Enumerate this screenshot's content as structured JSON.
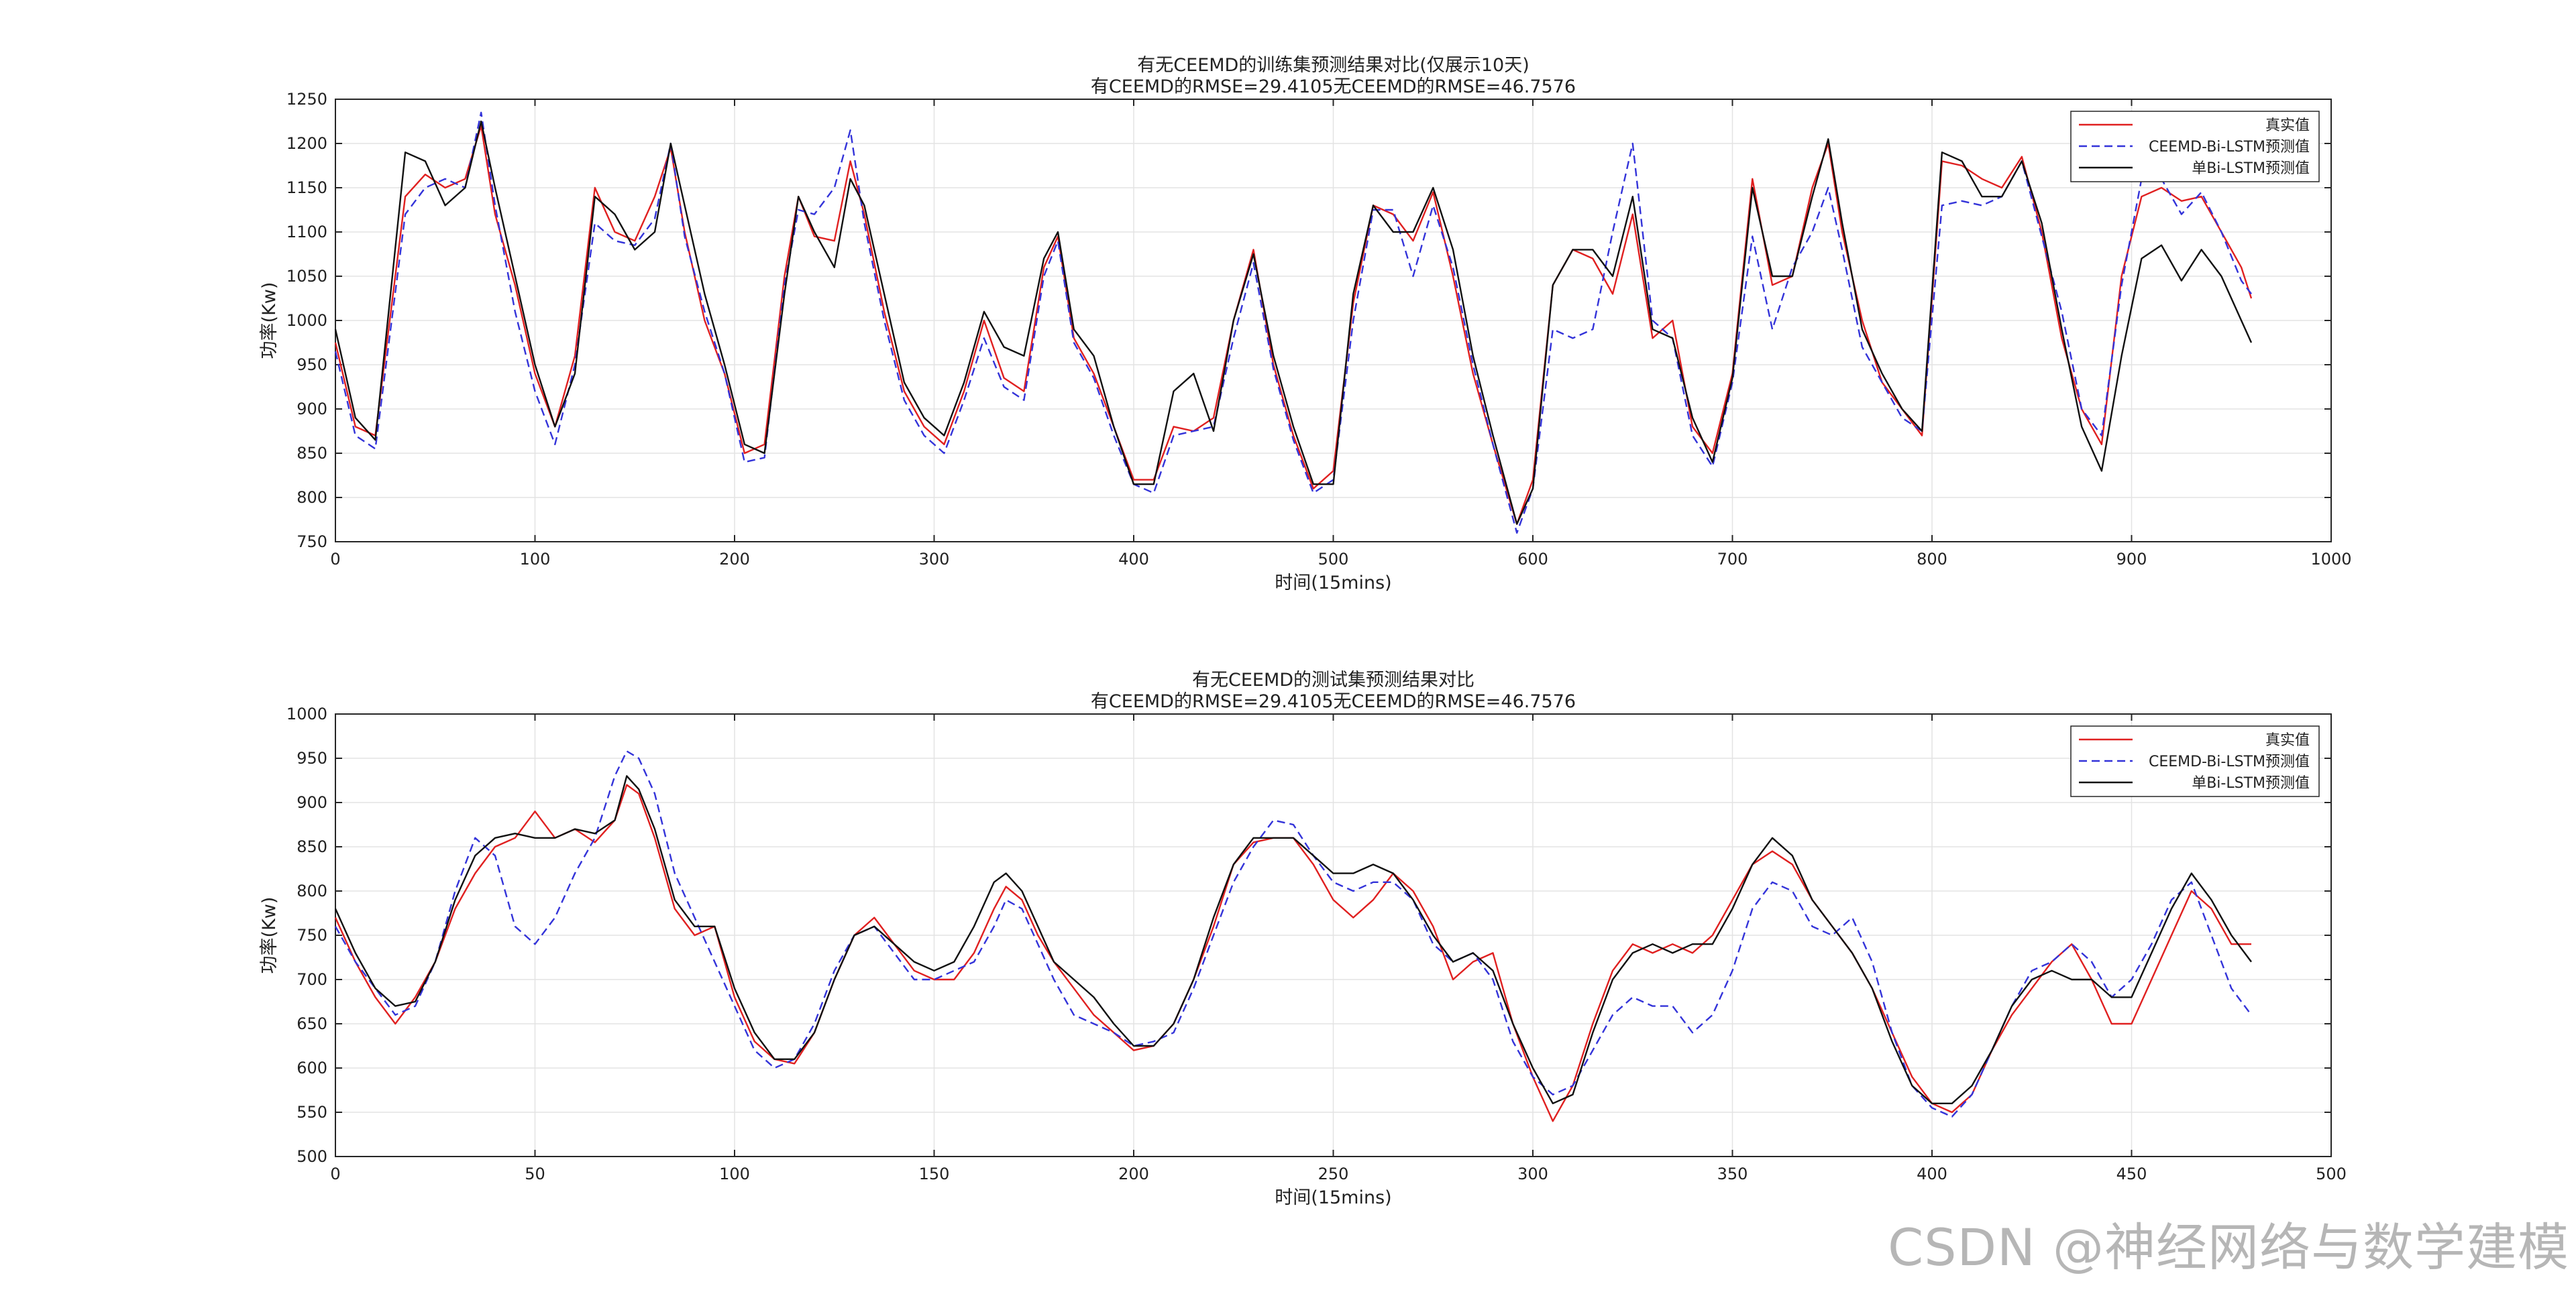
{
  "watermark": "CSDN @神经网络与数学建模",
  "chart_data": [
    {
      "type": "line",
      "title": "有无CEEMD的训练集预测结果对比(仅展示10天)",
      "subtitle": "有CEEMD的RMSE=29.4105无CEEMD的RMSE=46.7576",
      "xlabel": "时间(15mins)",
      "ylabel": "功率(Kw)",
      "xlim": [
        0,
        1000
      ],
      "ylim": [
        750,
        1250
      ],
      "xticks": [
        0,
        100,
        200,
        300,
        400,
        500,
        600,
        700,
        800,
        900,
        1000
      ],
      "yticks": [
        750,
        800,
        850,
        900,
        950,
        1000,
        1050,
        1100,
        1150,
        1200,
        1250
      ],
      "grid": true,
      "legend_position": "top-right",
      "x": [
        0,
        10,
        20,
        35,
        45,
        55,
        65,
        73,
        80,
        90,
        100,
        110,
        120,
        130,
        140,
        150,
        160,
        168,
        175,
        185,
        195,
        205,
        215,
        225,
        232,
        240,
        250,
        258,
        265,
        275,
        285,
        295,
        305,
        315,
        325,
        335,
        345,
        355,
        362,
        370,
        380,
        390,
        400,
        410,
        420,
        430,
        440,
        450,
        460,
        470,
        480,
        490,
        500,
        510,
        520,
        530,
        540,
        550,
        560,
        570,
        580,
        592,
        600,
        610,
        620,
        630,
        640,
        650,
        660,
        670,
        680,
        690,
        700,
        710,
        720,
        730,
        740,
        748,
        755,
        765,
        775,
        785,
        795,
        805,
        815,
        825,
        835,
        845,
        855,
        865,
        875,
        885,
        895,
        905,
        915,
        925,
        935,
        945,
        955,
        960
      ],
      "series": [
        {
          "name": "真实值",
          "color": "#e02020",
          "dash": "solid",
          "values": [
            975,
            880,
            870,
            1140,
            1165,
            1150,
            1160,
            1220,
            1120,
            1040,
            940,
            880,
            960,
            1150,
            1100,
            1090,
            1140,
            1195,
            1100,
            1000,
            940,
            850,
            860,
            1050,
            1140,
            1095,
            1090,
            1180,
            1120,
            1010,
            920,
            880,
            860,
            920,
            1000,
            935,
            920,
            1060,
            1095,
            980,
            940,
            880,
            820,
            820,
            880,
            875,
            890,
            1000,
            1080,
            950,
            870,
            810,
            830,
            1020,
            1130,
            1120,
            1090,
            1145,
            1050,
            940,
            860,
            770,
            820,
            1040,
            1080,
            1070,
            1030,
            1120,
            980,
            1000,
            880,
            850,
            940,
            1160,
            1040,
            1050,
            1150,
            1200,
            1100,
            1000,
            930,
            900,
            870,
            1180,
            1175,
            1160,
            1150,
            1185,
            1100,
            980,
            900,
            860,
            1050,
            1140,
            1150,
            1135,
            1140,
            1100,
            1060,
            1025
          ]
        },
        {
          "name": "CEEMD-Bi-LSTM预测值",
          "color": "#3333d9",
          "dash": "dashed",
          "values": [
            965,
            870,
            855,
            1120,
            1150,
            1160,
            1150,
            1235,
            1130,
            1010,
            920,
            860,
            950,
            1110,
            1090,
            1085,
            1115,
            1200,
            1095,
            1010,
            940,
            840,
            845,
            1040,
            1125,
            1120,
            1150,
            1215,
            1110,
            1000,
            910,
            870,
            850,
            910,
            980,
            925,
            910,
            1050,
            1090,
            975,
            935,
            870,
            815,
            805,
            870,
            875,
            880,
            980,
            1065,
            945,
            865,
            805,
            820,
            1000,
            1125,
            1125,
            1050,
            1130,
            1060,
            950,
            860,
            760,
            810,
            990,
            980,
            990,
            1100,
            1200,
            1000,
            980,
            870,
            835,
            930,
            1095,
            990,
            1060,
            1100,
            1150,
            1080,
            970,
            930,
            890,
            875,
            1130,
            1135,
            1130,
            1140,
            1180,
            1095,
            1010,
            900,
            870,
            1040,
            1160,
            1160,
            1120,
            1145,
            1100,
            1045,
            1030
          ]
        },
        {
          "name": "单Bi-LSTM预测值",
          "color": "#111111",
          "dash": "solid",
          "values": [
            990,
            890,
            865,
            1190,
            1180,
            1130,
            1150,
            1225,
            1150,
            1050,
            950,
            880,
            940,
            1140,
            1120,
            1080,
            1100,
            1200,
            1130,
            1030,
            950,
            860,
            850,
            1030,
            1140,
            1100,
            1060,
            1160,
            1130,
            1030,
            930,
            890,
            870,
            930,
            1010,
            970,
            960,
            1070,
            1100,
            990,
            960,
            880,
            815,
            815,
            920,
            940,
            875,
            1000,
            1075,
            960,
            880,
            815,
            815,
            1030,
            1130,
            1100,
            1100,
            1150,
            1080,
            960,
            870,
            770,
            810,
            1040,
            1080,
            1080,
            1050,
            1140,
            990,
            980,
            890,
            840,
            935,
            1150,
            1050,
            1050,
            1140,
            1205,
            1110,
            990,
            940,
            900,
            875,
            1190,
            1180,
            1140,
            1140,
            1180,
            1110,
            990,
            880,
            830,
            960,
            1070,
            1085,
            1045,
            1080,
            1050,
            1000,
            975
          ]
        }
      ]
    },
    {
      "type": "line",
      "title": "有无CEEMD的测试集预测结果对比",
      "subtitle": "有CEEMD的RMSE=29.4105无CEEMD的RMSE=46.7576",
      "xlabel": "时间(15mins)",
      "ylabel": "功率(Kw)",
      "xlim": [
        0,
        500
      ],
      "ylim": [
        500,
        1000
      ],
      "xticks": [
        0,
        50,
        100,
        150,
        200,
        250,
        300,
        350,
        400,
        450,
        500
      ],
      "yticks": [
        500,
        550,
        600,
        650,
        700,
        750,
        800,
        850,
        900,
        950,
        1000
      ],
      "grid": true,
      "legend_position": "top-right",
      "x": [
        0,
        5,
        10,
        15,
        20,
        25,
        30,
        35,
        40,
        45,
        50,
        55,
        60,
        65,
        70,
        73,
        76,
        80,
        85,
        90,
        95,
        100,
        105,
        110,
        115,
        120,
        125,
        130,
        135,
        140,
        145,
        150,
        155,
        160,
        165,
        168,
        172,
        176,
        180,
        185,
        190,
        195,
        200,
        205,
        210,
        215,
        220,
        225,
        230,
        235,
        240,
        245,
        250,
        255,
        260,
        265,
        270,
        275,
        280,
        285,
        290,
        295,
        300,
        305,
        310,
        315,
        320,
        325,
        330,
        335,
        340,
        345,
        350,
        355,
        360,
        365,
        370,
        375,
        380,
        385,
        390,
        395,
        400,
        405,
        410,
        415,
        420,
        425,
        430,
        435,
        440,
        445,
        450,
        455,
        460,
        465,
        470,
        475,
        480
      ],
      "series": [
        {
          "name": "真实值",
          "color": "#e02020",
          "dash": "solid",
          "values": [
            770,
            720,
            680,
            650,
            680,
            720,
            780,
            820,
            850,
            860,
            890,
            860,
            870,
            855,
            880,
            920,
            910,
            860,
            780,
            750,
            760,
            680,
            630,
            610,
            605,
            640,
            700,
            750,
            770,
            740,
            710,
            700,
            700,
            730,
            780,
            805,
            790,
            750,
            720,
            690,
            660,
            640,
            620,
            625,
            650,
            700,
            760,
            830,
            855,
            860,
            860,
            830,
            790,
            770,
            790,
            820,
            800,
            760,
            700,
            720,
            730,
            650,
            590,
            540,
            580,
            650,
            710,
            740,
            730,
            740,
            730,
            750,
            790,
            830,
            845,
            830,
            790,
            760,
            730,
            690,
            640,
            590,
            560,
            550,
            570,
            620,
            660,
            690,
            720,
            740,
            700,
            650,
            650,
            700,
            750,
            800,
            780,
            740,
            740
          ]
        },
        {
          "name": "CEEMD-Bi-LSTM预测值",
          "color": "#3333d9",
          "dash": "dashed",
          "values": [
            760,
            720,
            690,
            660,
            670,
            720,
            800,
            860,
            840,
            760,
            740,
            770,
            820,
            860,
            930,
            958,
            950,
            910,
            820,
            770,
            720,
            670,
            620,
            600,
            610,
            650,
            710,
            750,
            760,
            730,
            700,
            700,
            710,
            720,
            760,
            790,
            780,
            740,
            700,
            660,
            650,
            640,
            625,
            630,
            640,
            690,
            750,
            810,
            850,
            880,
            875,
            840,
            810,
            800,
            810,
            810,
            790,
            740,
            720,
            730,
            700,
            630,
            590,
            570,
            580,
            620,
            660,
            680,
            670,
            670,
            640,
            660,
            710,
            780,
            810,
            800,
            760,
            750,
            770,
            720,
            640,
            580,
            555,
            545,
            570,
            620,
            670,
            710,
            720,
            740,
            720,
            680,
            700,
            740,
            790,
            810,
            750,
            690,
            660
          ]
        },
        {
          "name": "单Bi-LSTM预测值",
          "color": "#111111",
          "dash": "solid",
          "values": [
            780,
            730,
            690,
            670,
            675,
            720,
            790,
            840,
            860,
            865,
            860,
            860,
            870,
            865,
            880,
            930,
            915,
            870,
            790,
            760,
            760,
            690,
            640,
            610,
            610,
            640,
            700,
            750,
            760,
            740,
            720,
            710,
            720,
            760,
            810,
            820,
            800,
            760,
            720,
            700,
            680,
            650,
            625,
            625,
            650,
            700,
            770,
            830,
            860,
            860,
            860,
            840,
            820,
            820,
            830,
            820,
            790,
            750,
            720,
            730,
            710,
            650,
            600,
            560,
            570,
            640,
            700,
            730,
            740,
            730,
            740,
            740,
            780,
            830,
            860,
            840,
            790,
            760,
            730,
            690,
            630,
            580,
            560,
            560,
            580,
            620,
            670,
            700,
            710,
            700,
            700,
            680,
            680,
            730,
            780,
            820,
            790,
            750,
            720
          ]
        }
      ]
    }
  ]
}
